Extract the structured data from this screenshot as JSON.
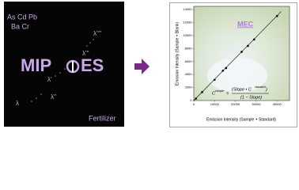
{
  "left_panel": {
    "elements_line1": "As Cd Pb",
    "elements_line2": "Ba Cr",
    "lambdas": [
      "λ''''",
      "λ'''",
      "λ''",
      "λ'",
      "λ"
    ],
    "logo_left": "MIP",
    "logo_right": "ES",
    "label": "Fertilizer"
  },
  "chart_data": {
    "type": "scatter",
    "title": "MEC",
    "x_label": "Emission Intensity (Sample + Standard)",
    "y_label": "Emission Intensity (Sample + Blank)",
    "xlim": [
      0,
      46000
    ],
    "ylim": [
      0,
      14500
    ],
    "xticks": [
      0,
      10000,
      20000,
      30000,
      40000
    ],
    "yticks": [
      0,
      2000,
      4000,
      6000,
      8000,
      10000,
      12000,
      14000
    ],
    "series": [
      {
        "color": "#000000",
        "x": [
          1000,
          4000,
          10000,
          14000,
          15500,
          23000,
          26000,
          29000,
          40000
        ],
        "values": [
          300,
          1300,
          3200,
          4600,
          5000,
          7500,
          8400,
          9400,
          13000
        ]
      },
      {
        "color": "#000000",
        "x": [
          0,
          42000
        ],
        "values": [
          0,
          13700
        ],
        "line": true
      }
    ],
    "formula": {
      "lhs": "C",
      "lhs_sup": "sample",
      "equals": "=",
      "num_left": "(Slope • C",
      "num_sup": "standard",
      "num_right": ")",
      "den": "(1 − Slope)"
    }
  }
}
